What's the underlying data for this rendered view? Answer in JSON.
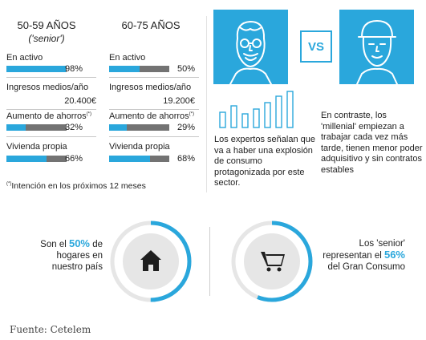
{
  "groups": [
    {
      "title": "50-59 AÑOS",
      "subtitle": "('senior')",
      "metrics": [
        {
          "label": "En activo",
          "value": "98%",
          "fill": 0.98,
          "bar": true
        },
        {
          "label": "Ingresos medios/año",
          "value": "20.400€",
          "bar": false
        },
        {
          "label": "Aumento de ahorros",
          "marker": "(*)",
          "value": "32%",
          "fill": 0.32,
          "bar": true
        },
        {
          "label": "Vivienda propia",
          "value": "66%",
          "fill": 0.66,
          "bar": true
        }
      ]
    },
    {
      "title": "60-75 AÑOS",
      "subtitle": "",
      "metrics": [
        {
          "label": "En activo",
          "value": "50%",
          "fill": 0.5,
          "bar": true
        },
        {
          "label": "Ingresos medios/año",
          "value": "19.200€",
          "bar": false
        },
        {
          "label": "Aumento de ahorros",
          "marker": "(*)",
          "value": "29%",
          "fill": 0.29,
          "bar": true
        },
        {
          "label": "Vivienda propia",
          "value": "68%",
          "fill": 0.68,
          "bar": true
        }
      ]
    }
  ],
  "footnote": {
    "marker": "(*)",
    "text": "Intención en los próximos 12 meses"
  },
  "vs_label": "VS",
  "paragraphs": {
    "left": "Los expertos señalan que va a haber una explosión de consumo protagonizada por este sector.",
    "right": "En contraste, los 'millenial' empiezan a trabajar cada vez más tarde, tienen menor poder adquisitivo y sin contratos estables"
  },
  "stats": [
    {
      "before": "Son el ",
      "pct": "50%",
      "after": " de hogares en nuestro país",
      "progress": 0.5,
      "icon": "house-icon"
    },
    {
      "before": "Los 'senior' representan el ",
      "pct": "56%",
      "after": " del Gran Consumo",
      "progress": 0.56,
      "icon": "shopping-cart-icon"
    }
  ],
  "source": "Fuente: Cetelem",
  "colors": {
    "accent": "#2aa7dc",
    "bar_track": "#737373",
    "ring_track": "#e6e6e6"
  }
}
